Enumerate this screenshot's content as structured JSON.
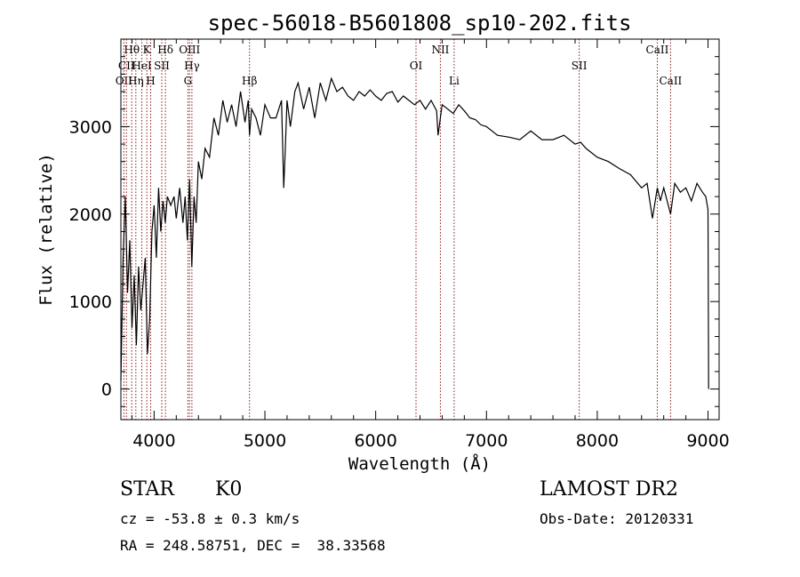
{
  "chart_data": {
    "type": "line",
    "title": "spec-56018-B5601808_sp10-202.fits",
    "xlabel": "Wavelength (Å)",
    "ylabel": "Flux (relative)",
    "xlim": [
      3700,
      9100
    ],
    "ylim": [
      -350,
      4000
    ],
    "x_ticks": [
      {
        "value": 4000,
        "label": "4000"
      },
      {
        "value": 5000,
        "label": "5000"
      },
      {
        "value": 6000,
        "label": "6000"
      },
      {
        "value": 7000,
        "label": "7000"
      },
      {
        "value": 8000,
        "label": "8000"
      },
      {
        "value": 9000,
        "label": "9000"
      }
    ],
    "y_ticks": [
      {
        "value": 0,
        "label": "0"
      },
      {
        "value": 1000,
        "label": "1000"
      },
      {
        "value": 2000,
        "label": "2000"
      },
      {
        "value": 3000,
        "label": "3000"
      }
    ],
    "series": [
      {
        "name": "Flux",
        "x": [
          3700,
          3720,
          3740,
          3760,
          3780,
          3800,
          3820,
          3840,
          3860,
          3880,
          3900,
          3920,
          3940,
          3960,
          3980,
          4000,
          4020,
          4040,
          4060,
          4080,
          4100,
          4120,
          4150,
          4180,
          4200,
          4230,
          4260,
          4280,
          4300,
          4320,
          4340,
          4360,
          4380,
          4400,
          4430,
          4460,
          4500,
          4540,
          4580,
          4620,
          4660,
          4700,
          4740,
          4780,
          4820,
          4850,
          4861,
          4880,
          4920,
          4960,
          5000,
          5050,
          5100,
          5150,
          5170,
          5183,
          5200,
          5230,
          5270,
          5300,
          5350,
          5400,
          5450,
          5500,
          5550,
          5600,
          5650,
          5700,
          5750,
          5800,
          5850,
          5900,
          5950,
          6000,
          6050,
          6100,
          6150,
          6200,
          6250,
          6300,
          6350,
          6400,
          6450,
          6500,
          6550,
          6563,
          6600,
          6650,
          6700,
          6750,
          6800,
          6850,
          6900,
          6950,
          7000,
          7100,
          7200,
          7300,
          7400,
          7500,
          7600,
          7700,
          7800,
          7850,
          7900,
          8000,
          8100,
          8200,
          8300,
          8400,
          8450,
          8498,
          8542,
          8570,
          8600,
          8662,
          8700,
          8750,
          8800,
          8850,
          8900,
          8950,
          8980,
          9000,
          9005
        ],
        "values": [
          100,
          1500,
          2200,
          1100,
          1700,
          700,
          1300,
          500,
          1400,
          900,
          1200,
          1500,
          400,
          800,
          1800,
          2100,
          1500,
          2300,
          1800,
          2150,
          1900,
          2200,
          2100,
          2200,
          1950,
          2300,
          1900,
          2200,
          1700,
          2400,
          1400,
          2200,
          1900,
          2600,
          2400,
          2750,
          2650,
          3100,
          2900,
          3300,
          3050,
          3250,
          3000,
          3400,
          3050,
          3300,
          2900,
          3200,
          3100,
          2900,
          3250,
          3100,
          3100,
          3300,
          2300,
          2700,
          3300,
          3000,
          3400,
          3500,
          3200,
          3450,
          3100,
          3500,
          3300,
          3550,
          3400,
          3450,
          3350,
          3300,
          3400,
          3350,
          3420,
          3350,
          3300,
          3380,
          3400,
          3280,
          3350,
          3300,
          3250,
          3300,
          3200,
          3300,
          3180,
          2900,
          3250,
          3200,
          3150,
          3250,
          3180,
          3100,
          3080,
          3020,
          3000,
          2900,
          2880,
          2850,
          2950,
          2850,
          2850,
          2900,
          2800,
          2820,
          2750,
          2650,
          2600,
          2520,
          2450,
          2300,
          2350,
          1950,
          2300,
          2150,
          2300,
          2000,
          2350,
          2250,
          2300,
          2150,
          2350,
          2250,
          2200,
          2050,
          0
        ]
      }
    ],
    "spectral_lines": [
      {
        "name": "O II",
        "label": "OII",
        "wavelength": 3727,
        "row": 2
      },
      {
        "name": "H theta",
        "label": "Hθ",
        "wavelength": 3798,
        "row": 0
      },
      {
        "name": "C II",
        "label": "CII",
        "wavelength": 3750,
        "row": 1
      },
      {
        "name": "H eta",
        "label": "Hη",
        "wavelength": 3835,
        "row": 2
      },
      {
        "name": "He I",
        "label": "HeI",
        "wavelength": 3889,
        "row": 1
      },
      {
        "name": "K",
        "label": "K",
        "wavelength": 3934,
        "row": 0
      },
      {
        "name": "H",
        "label": "H",
        "wavelength": 3969,
        "row": 2
      },
      {
        "name": "S II",
        "label": "SII",
        "wavelength": 4069,
        "row": 1
      },
      {
        "name": "H delta",
        "label": "Hδ",
        "wavelength": 4102,
        "row": 0
      },
      {
        "name": "G",
        "label": "G",
        "wavelength": 4305,
        "row": 2
      },
      {
        "name": "O III",
        "label": "OIII",
        "wavelength": 4320,
        "row": 0
      },
      {
        "name": "H gamma",
        "label": "Hγ",
        "wavelength": 4341,
        "row": 1
      },
      {
        "name": "H beta",
        "label": "Hβ",
        "wavelength": 4861,
        "row": 2
      },
      {
        "name": "O I",
        "label": "OI",
        "wavelength": 6364,
        "row": 1
      },
      {
        "name": "N II",
        "label": "NII",
        "wavelength": 6584,
        "row": 0
      },
      {
        "name": "Li",
        "label": "Li",
        "wavelength": 6708,
        "row": 2
      },
      {
        "name": "S II",
        "label": "SII",
        "wavelength": 7837,
        "row": 1
      },
      {
        "name": "Ca II",
        "label": "CaII",
        "wavelength": 8542,
        "row": 0
      },
      {
        "name": "Ca II",
        "label": "CaII",
        "wavelength": 8662,
        "row": 2
      }
    ],
    "line_color": "#8b1a1a",
    "data_color": "#000000"
  },
  "info": {
    "object_class": "STAR",
    "subclass": "K0",
    "survey": "LAMOST DR2",
    "redshift": "cz = -53.8 ± 0.3 km/s",
    "obs_date": "Obs-Date: 20120331",
    "coordinates": "RA = 248.58751, DEC =  38.33568"
  }
}
